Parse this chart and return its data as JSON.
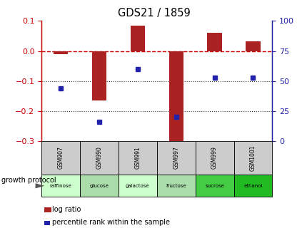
{
  "title": "GDS21 / 1859",
  "samples": [
    "GSM907",
    "GSM990",
    "GSM991",
    "GSM997",
    "GSM999",
    "GSM1001"
  ],
  "protocols": [
    "raffinose",
    "glucose",
    "galactose",
    "fructose",
    "sucrose",
    "ethanol"
  ],
  "log_ratio": [
    -0.01,
    -0.165,
    0.085,
    -0.305,
    0.06,
    0.032
  ],
  "percentile_rank": [
    44,
    16,
    60,
    20,
    53,
    53
  ],
  "left_ylim": [
    -0.3,
    0.1
  ],
  "right_ylim": [
    0,
    100
  ],
  "left_yticks": [
    -0.3,
    -0.2,
    -0.1,
    0.0,
    0.1
  ],
  "right_yticks": [
    0,
    25,
    50,
    75,
    100
  ],
  "bar_color": "#aa2222",
  "dot_color": "#2222aa",
  "zero_line_color": "#cc0000",
  "dotted_line_color": "#333333",
  "protocol_colors": [
    "#ccffcc",
    "#aaddaa",
    "#ccffcc",
    "#aaddaa",
    "#44cc44",
    "#22bb22"
  ],
  "sample_bg": "#cccccc",
  "protocol_label": "growth protocol",
  "legend_log_ratio": "log ratio",
  "legend_percentile": "percentile rank within the sample"
}
